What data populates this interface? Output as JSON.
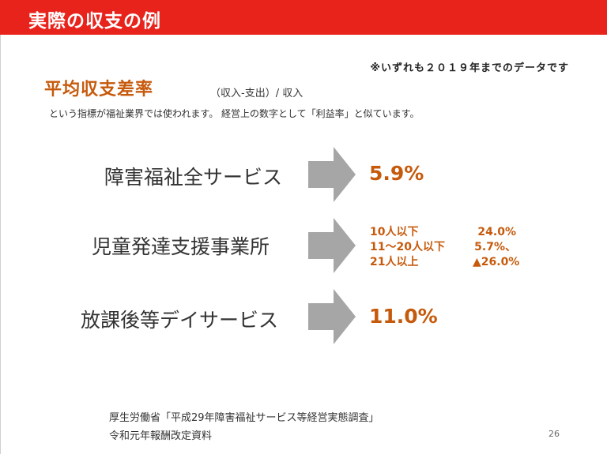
{
  "header": {
    "title": "実際の収支の例"
  },
  "note": "※いずれも２０１９年までのデータです",
  "metric": {
    "title": "平均収支差率",
    "formula": "（収入-支出）/ 収入",
    "description": "という指標が福祉業界では使われます。 経営上の数字として「利益率」と似ています。"
  },
  "categories": [
    {
      "label": "障害福祉全サービス",
      "value": "5.9%"
    },
    {
      "label": "児童発達支援事業所",
      "breakdown": [
        {
          "label": "10人以下",
          "value": "24.0%"
        },
        {
          "label": "11～20人以下",
          "value": "5.7%、"
        },
        {
          "label": "21人以上",
          "value": "▲26.0%"
        }
      ]
    },
    {
      "label": "放課後等デイサービス",
      "value": "11.0%"
    }
  ],
  "source": {
    "line1": "厚生労働省「平成29年障害福祉サービス等経営実態調査」",
    "line2": "令和元年報酬改定資料"
  },
  "page_number": "26",
  "colors": {
    "header": "#e8231c",
    "accent": "#c65a0c",
    "arrow": "#a6a6a6"
  }
}
